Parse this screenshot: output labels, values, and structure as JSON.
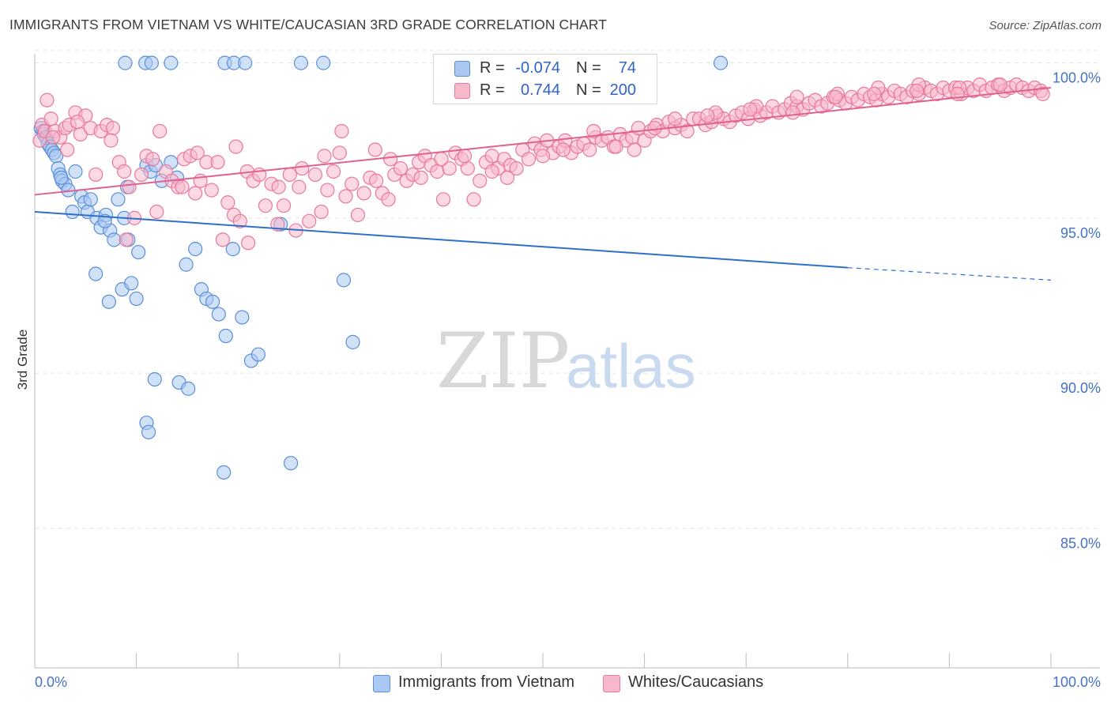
{
  "title": "IMMIGRANTS FROM VIETNAM VS WHITE/CAUCASIAN 3RD GRADE CORRELATION CHART",
  "source": "Source: ZipAtlas.com",
  "watermark": {
    "zip": "ZIP",
    "atlas": "atlas"
  },
  "legend": {
    "r_label": "R =",
    "n_label": "N =",
    "series": [
      {
        "r": "-0.074",
        "n": "74",
        "color": "#aac8f2"
      },
      {
        "r": "0.744",
        "n": "200",
        "color": "#f7b8cb"
      }
    ]
  },
  "bottom_legend": [
    {
      "label": "Immigrants from Vietnam",
      "color": "#aac8f2"
    },
    {
      "label": "Whites/Caucasians",
      "color": "#f7b8cb"
    }
  ],
  "chart_data": {
    "type": "scatter",
    "title": "IMMIGRANTS FROM VIETNAM VS WHITE/CAUCASIAN 3RD GRADE CORRELATION CHART",
    "xlabel": "",
    "ylabel": "3rd Grade",
    "xlim": [
      0,
      100
    ],
    "ylim": [
      80.5,
      100.5
    ],
    "x_tick_labels": [
      "0.0%",
      "100.0%"
    ],
    "y_tick_values": [
      85.0,
      90.0,
      95.0,
      100.0
    ],
    "y_tick_labels": [
      "85.0%",
      "90.0%",
      "95.0%",
      "100.0%"
    ],
    "grid": true,
    "series": [
      {
        "name": "Immigrants from Vietnam",
        "color": "#5b8fd6",
        "fill": "#aac8f2",
        "trend": {
          "x": [
            0,
            80
          ],
          "y": [
            95.2,
            93.4
          ],
          "dashed_to": [
            100,
            93.0
          ],
          "color": "#2f6fcc"
        },
        "points": [
          [
            0.6,
            97.9
          ],
          [
            0.8,
            97.8
          ],
          [
            0.9,
            97.7
          ],
          [
            1.1,
            97.6
          ],
          [
            1.3,
            97.4
          ],
          [
            1.5,
            97.3
          ],
          [
            1.7,
            97.2
          ],
          [
            1.9,
            97.1
          ],
          [
            2.1,
            97.0
          ],
          [
            2.3,
            96.6
          ],
          [
            2.5,
            96.4
          ],
          [
            2.7,
            96.2
          ],
          [
            3.0,
            96.1
          ],
          [
            3.3,
            95.9
          ],
          [
            4.0,
            96.5
          ],
          [
            4.6,
            95.7
          ],
          [
            4.9,
            95.5
          ],
          [
            5.2,
            95.2
          ],
          [
            5.5,
            95.6
          ],
          [
            6.1,
            95.0
          ],
          [
            6.5,
            94.7
          ],
          [
            7.0,
            95.1
          ],
          [
            7.4,
            94.6
          ],
          [
            7.8,
            94.3
          ],
          [
            8.2,
            95.6
          ],
          [
            8.8,
            95.0
          ],
          [
            9.2,
            94.3
          ],
          [
            10.2,
            93.9
          ],
          [
            11.0,
            96.7
          ],
          [
            11.4,
            96.5
          ],
          [
            11.9,
            96.7
          ],
          [
            13.4,
            96.8
          ],
          [
            14.0,
            96.3
          ],
          [
            14.9,
            93.5
          ],
          [
            15.8,
            94.0
          ],
          [
            16.4,
            92.7
          ],
          [
            16.9,
            92.4
          ],
          [
            17.5,
            92.3
          ],
          [
            18.1,
            91.9
          ],
          [
            18.8,
            91.2
          ],
          [
            19.5,
            94.0
          ],
          [
            20.4,
            91.8
          ],
          [
            21.3,
            90.4
          ],
          [
            22.0,
            90.6
          ],
          [
            6.0,
            93.2
          ],
          [
            7.3,
            92.3
          ],
          [
            8.6,
            92.7
          ],
          [
            9.5,
            92.9
          ],
          [
            10.0,
            92.4
          ],
          [
            11.8,
            89.8
          ],
          [
            14.2,
            89.7
          ],
          [
            15.1,
            89.5
          ],
          [
            11.0,
            88.4
          ],
          [
            11.2,
            88.1
          ],
          [
            18.6,
            86.8
          ],
          [
            25.2,
            87.1
          ],
          [
            30.4,
            93.0
          ],
          [
            31.3,
            91.0
          ],
          [
            8.9,
            100.0
          ],
          [
            10.9,
            100.0
          ],
          [
            11.5,
            100.0
          ],
          [
            13.4,
            100.0
          ],
          [
            18.7,
            100.0
          ],
          [
            19.6,
            100.0
          ],
          [
            20.7,
            100.0
          ],
          [
            26.2,
            100.0
          ],
          [
            28.4,
            100.0
          ],
          [
            67.5,
            100.0
          ],
          [
            24.2,
            94.8
          ],
          [
            3.7,
            95.2
          ],
          [
            6.9,
            94.9
          ],
          [
            2.6,
            96.3
          ],
          [
            9.1,
            96.0
          ],
          [
            12.5,
            96.2
          ]
        ]
      },
      {
        "name": "Whites/Caucasians",
        "color": "#e8789c",
        "fill": "#f7b8cb",
        "trend": {
          "x": [
            0,
            100
          ],
          "y": [
            95.75,
            99.2
          ],
          "color": "#e06090"
        },
        "points": [
          [
            0.5,
            97.5
          ],
          [
            0.7,
            98.0
          ],
          [
            1.0,
            97.8
          ],
          [
            1.2,
            98.8
          ],
          [
            1.6,
            98.2
          ],
          [
            2.0,
            97.8
          ],
          [
            2.5,
            97.6
          ],
          [
            3.0,
            97.9
          ],
          [
            3.4,
            98.0
          ],
          [
            4.0,
            98.4
          ],
          [
            4.5,
            97.7
          ],
          [
            5.0,
            98.3
          ],
          [
            5.5,
            97.9
          ],
          [
            6.0,
            96.4
          ],
          [
            6.5,
            97.8
          ],
          [
            7.1,
            98.0
          ],
          [
            7.7,
            97.9
          ],
          [
            8.3,
            96.8
          ],
          [
            8.8,
            96.5
          ],
          [
            9.3,
            96.0
          ],
          [
            9.8,
            95.0
          ],
          [
            10.5,
            96.4
          ],
          [
            11.0,
            97.0
          ],
          [
            11.6,
            96.9
          ],
          [
            12.3,
            97.8
          ],
          [
            12.9,
            96.5
          ],
          [
            13.5,
            96.2
          ],
          [
            14.1,
            96.0
          ],
          [
            14.7,
            96.9
          ],
          [
            15.3,
            97.0
          ],
          [
            15.8,
            95.8
          ],
          [
            16.3,
            96.2
          ],
          [
            16.9,
            96.8
          ],
          [
            17.4,
            95.9
          ],
          [
            18.0,
            96.8
          ],
          [
            18.5,
            94.3
          ],
          [
            19.0,
            95.5
          ],
          [
            19.6,
            95.1
          ],
          [
            20.2,
            94.9
          ],
          [
            20.9,
            96.5
          ],
          [
            21.5,
            96.2
          ],
          [
            22.1,
            96.4
          ],
          [
            22.7,
            95.4
          ],
          [
            23.3,
            96.1
          ],
          [
            23.9,
            94.8
          ],
          [
            24.5,
            95.4
          ],
          [
            25.1,
            96.4
          ],
          [
            25.7,
            94.6
          ],
          [
            26.3,
            96.6
          ],
          [
            27.0,
            94.9
          ],
          [
            27.6,
            96.4
          ],
          [
            28.2,
            95.2
          ],
          [
            28.8,
            95.9
          ],
          [
            29.4,
            96.5
          ],
          [
            30.0,
            97.1
          ],
          [
            30.6,
            95.7
          ],
          [
            31.2,
            96.1
          ],
          [
            31.8,
            95.1
          ],
          [
            32.4,
            95.8
          ],
          [
            33.0,
            96.3
          ],
          [
            33.6,
            96.2
          ],
          [
            34.2,
            95.8
          ],
          [
            34.8,
            95.6
          ],
          [
            35.4,
            96.4
          ],
          [
            36.0,
            96.6
          ],
          [
            36.6,
            96.2
          ],
          [
            37.2,
            96.4
          ],
          [
            37.8,
            96.8
          ],
          [
            38.4,
            97.0
          ],
          [
            39.0,
            96.7
          ],
          [
            39.6,
            96.5
          ],
          [
            40.2,
            95.6
          ],
          [
            40.8,
            96.6
          ],
          [
            41.4,
            97.1
          ],
          [
            42.0,
            96.9
          ],
          [
            42.6,
            96.6
          ],
          [
            43.2,
            95.6
          ],
          [
            43.8,
            96.2
          ],
          [
            44.4,
            96.8
          ],
          [
            45.0,
            97.0
          ],
          [
            45.6,
            96.6
          ],
          [
            46.2,
            96.9
          ],
          [
            46.8,
            96.7
          ],
          [
            47.4,
            96.6
          ],
          [
            48.0,
            97.2
          ],
          [
            48.6,
            96.9
          ],
          [
            49.2,
            97.4
          ],
          [
            49.8,
            97.2
          ],
          [
            50.4,
            97.5
          ],
          [
            51.0,
            97.1
          ],
          [
            51.6,
            97.3
          ],
          [
            52.2,
            97.5
          ],
          [
            52.8,
            97.1
          ],
          [
            53.4,
            97.3
          ],
          [
            54.0,
            97.4
          ],
          [
            54.6,
            97.2
          ],
          [
            55.2,
            97.6
          ],
          [
            55.8,
            97.5
          ],
          [
            56.4,
            97.6
          ],
          [
            57.0,
            97.3
          ],
          [
            57.6,
            97.7
          ],
          [
            58.2,
            97.5
          ],
          [
            58.8,
            97.6
          ],
          [
            59.4,
            97.9
          ],
          [
            60.0,
            97.5
          ],
          [
            60.6,
            97.8
          ],
          [
            61.2,
            98.0
          ],
          [
            61.8,
            97.8
          ],
          [
            62.4,
            98.1
          ],
          [
            63.0,
            97.9
          ],
          [
            63.6,
            98.0
          ],
          [
            64.2,
            97.8
          ],
          [
            64.8,
            98.2
          ],
          [
            65.4,
            98.2
          ],
          [
            66.0,
            98.0
          ],
          [
            66.6,
            98.1
          ],
          [
            67.2,
            98.3
          ],
          [
            67.8,
            98.2
          ],
          [
            68.4,
            98.1
          ],
          [
            69.0,
            98.3
          ],
          [
            69.6,
            98.4
          ],
          [
            70.2,
            98.2
          ],
          [
            70.8,
            98.5
          ],
          [
            71.4,
            98.3
          ],
          [
            72.0,
            98.4
          ],
          [
            72.6,
            98.6
          ],
          [
            73.2,
            98.4
          ],
          [
            73.8,
            98.5
          ],
          [
            74.4,
            98.7
          ],
          [
            75.0,
            98.6
          ],
          [
            75.6,
            98.5
          ],
          [
            76.2,
            98.7
          ],
          [
            76.8,
            98.8
          ],
          [
            77.4,
            98.6
          ],
          [
            78.0,
            98.7
          ],
          [
            78.6,
            98.9
          ],
          [
            79.2,
            98.8
          ],
          [
            79.8,
            98.7
          ],
          [
            80.4,
            98.9
          ],
          [
            81.0,
            98.8
          ],
          [
            81.6,
            99.0
          ],
          [
            82.2,
            98.9
          ],
          [
            82.8,
            98.8
          ],
          [
            83.4,
            99.0
          ],
          [
            84.0,
            98.9
          ],
          [
            84.6,
            99.1
          ],
          [
            85.2,
            99.0
          ],
          [
            85.8,
            98.9
          ],
          [
            86.4,
            99.1
          ],
          [
            87.0,
            99.0
          ],
          [
            87.6,
            99.2
          ],
          [
            88.2,
            99.1
          ],
          [
            88.8,
            99.0
          ],
          [
            89.4,
            99.2
          ],
          [
            90.0,
            99.1
          ],
          [
            90.6,
            99.2
          ],
          [
            91.2,
            99.0
          ],
          [
            91.8,
            99.2
          ],
          [
            92.4,
            99.1
          ],
          [
            93.0,
            99.3
          ],
          [
            93.6,
            99.1
          ],
          [
            94.2,
            99.2
          ],
          [
            94.8,
            99.3
          ],
          [
            95.4,
            99.1
          ],
          [
            96.0,
            99.2
          ],
          [
            96.6,
            99.3
          ],
          [
            97.2,
            99.2
          ],
          [
            97.8,
            99.1
          ],
          [
            98.4,
            99.2
          ],
          [
            99.0,
            99.1
          ],
          [
            3.2,
            97.2
          ],
          [
            7.5,
            97.5
          ],
          [
            12.0,
            95.2
          ],
          [
            16.0,
            97.1
          ],
          [
            19.8,
            97.3
          ],
          [
            24.0,
            96.0
          ],
          [
            28.5,
            97.0
          ],
          [
            33.5,
            97.2
          ],
          [
            38.0,
            96.3
          ],
          [
            42.3,
            97.0
          ],
          [
            46.5,
            96.3
          ],
          [
            50.0,
            97.0
          ],
          [
            55.0,
            97.8
          ],
          [
            59.0,
            97.2
          ],
          [
            63.0,
            98.2
          ],
          [
            67.0,
            98.4
          ],
          [
            71.0,
            98.6
          ],
          [
            75.0,
            98.9
          ],
          [
            79.0,
            99.0
          ],
          [
            83.0,
            99.2
          ],
          [
            87.0,
            99.3
          ],
          [
            91.0,
            99.2
          ],
          [
            95.0,
            99.3
          ],
          [
            99.2,
            99.0
          ],
          [
            1.8,
            97.6
          ],
          [
            4.2,
            98.1
          ],
          [
            9.0,
            94.3
          ],
          [
            14.5,
            96.0
          ],
          [
            21.0,
            94.2
          ],
          [
            26.0,
            96.0
          ],
          [
            30.2,
            97.8
          ],
          [
            35.0,
            96.9
          ],
          [
            40.0,
            96.9
          ],
          [
            45.0,
            96.5
          ],
          [
            52.0,
            97.2
          ],
          [
            57.2,
            97.3
          ],
          [
            61.0,
            97.9
          ],
          [
            66.2,
            98.3
          ],
          [
            70.4,
            98.5
          ],
          [
            74.6,
            98.4
          ],
          [
            78.8,
            98.9
          ],
          [
            82.6,
            99.0
          ],
          [
            86.8,
            99.1
          ],
          [
            90.8,
            99.0
          ]
        ]
      }
    ]
  }
}
